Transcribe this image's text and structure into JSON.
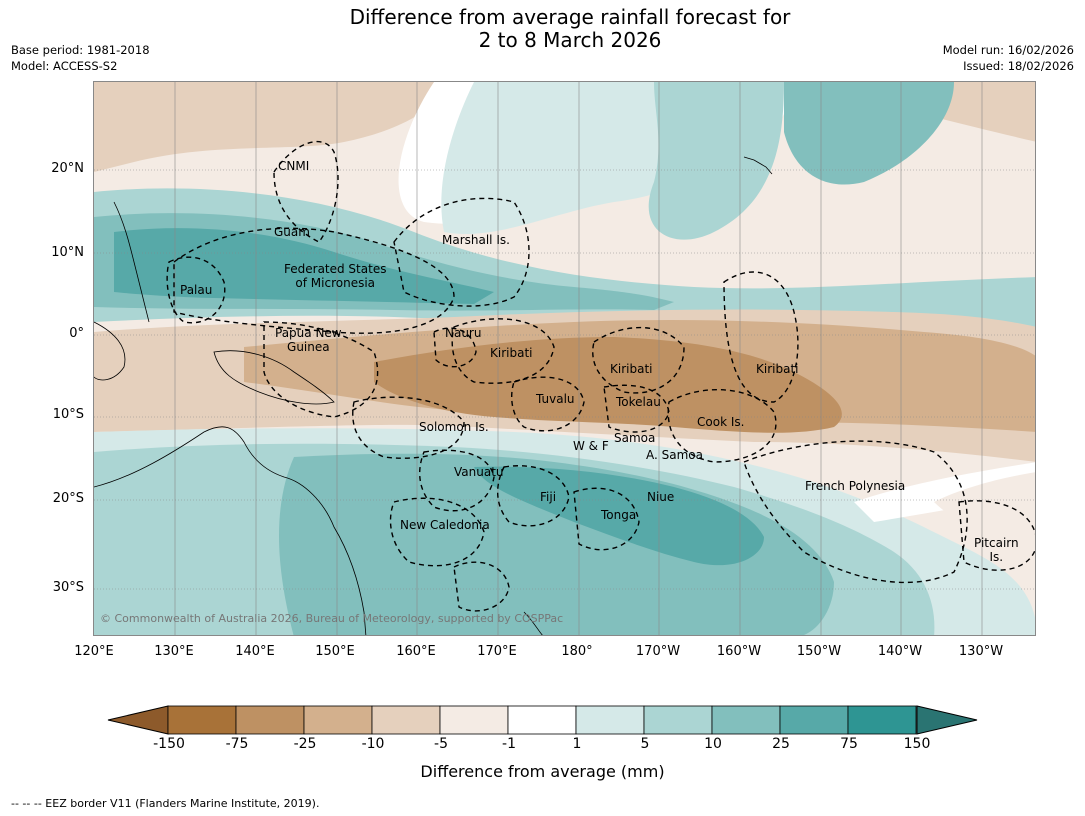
{
  "header": {
    "title_line1": "Difference from average rainfall forecast for",
    "title_line2": "2 to 8 March 2026",
    "base_period": "Base period: 1981-2018",
    "model": "Model: ACCESS-S2",
    "model_run": "Model run: 16/02/2026",
    "issued": "Issued: 18/02/2026"
  },
  "map": {
    "copyright": "© Commonwealth of Australia 2026, Bureau of Meteorology, supported by COSPPac",
    "lat_labels": [
      "20°N",
      "10°N",
      "0°",
      "10°S",
      "20°S",
      "30°S"
    ],
    "lon_labels": [
      "120°E",
      "130°E",
      "140°E",
      "150°E",
      "160°E",
      "170°E",
      "180°",
      "170°W",
      "160°W",
      "150°W",
      "140°W",
      "130°W"
    ],
    "places": {
      "cnmi": "CNMI",
      "guam": "Guam",
      "marshall": "Marshall Is.",
      "fsm_line1": "Federated States",
      "fsm_line2": "of Micronesia",
      "palau": "Palau",
      "png_line1": "Papua New",
      "png_line2": "Guinea",
      "nauru": "Nauru",
      "kiribati_w": "Kiribati",
      "kiribati_c": "Kiribati",
      "kiribati_e": "Kiribati",
      "tuvalu": "Tuvalu",
      "tokelau": "Tokelau",
      "cook": "Cook Is.",
      "solomon": "Solomon Is.",
      "samoa": "Samoa",
      "wf": "W & F",
      "asamoa": "A. Samoa",
      "vanuatu": "Vanuatu",
      "fiji": "Fiji",
      "niue": "Niue",
      "tonga": "Tonga",
      "newcal": "New Caledonia",
      "frpoly": "French Polynesia",
      "pitcairn_line1": "Pitcairn",
      "pitcairn_line2": "Is."
    }
  },
  "colorbar": {
    "ticks": [
      "-150",
      "-75",
      "-25",
      "-10",
      "-5",
      "-1",
      "1",
      "5",
      "10",
      "25",
      "75",
      "150"
    ],
    "colors": [
      "#8d5a2b",
      "#a87238",
      "#be9163",
      "#d3b08d",
      "#e5d0bd",
      "#f4ebe4",
      "#ffffff",
      "#d5e9e8",
      "#abd5d3",
      "#82bfbd",
      "#57a9a8",
      "#2e9593",
      "#2a7472"
    ],
    "title": "Difference from average (mm)"
  },
  "footnote": "--  --  -- EEZ border V11 (Flanders Marine Institute, 2019)."
}
